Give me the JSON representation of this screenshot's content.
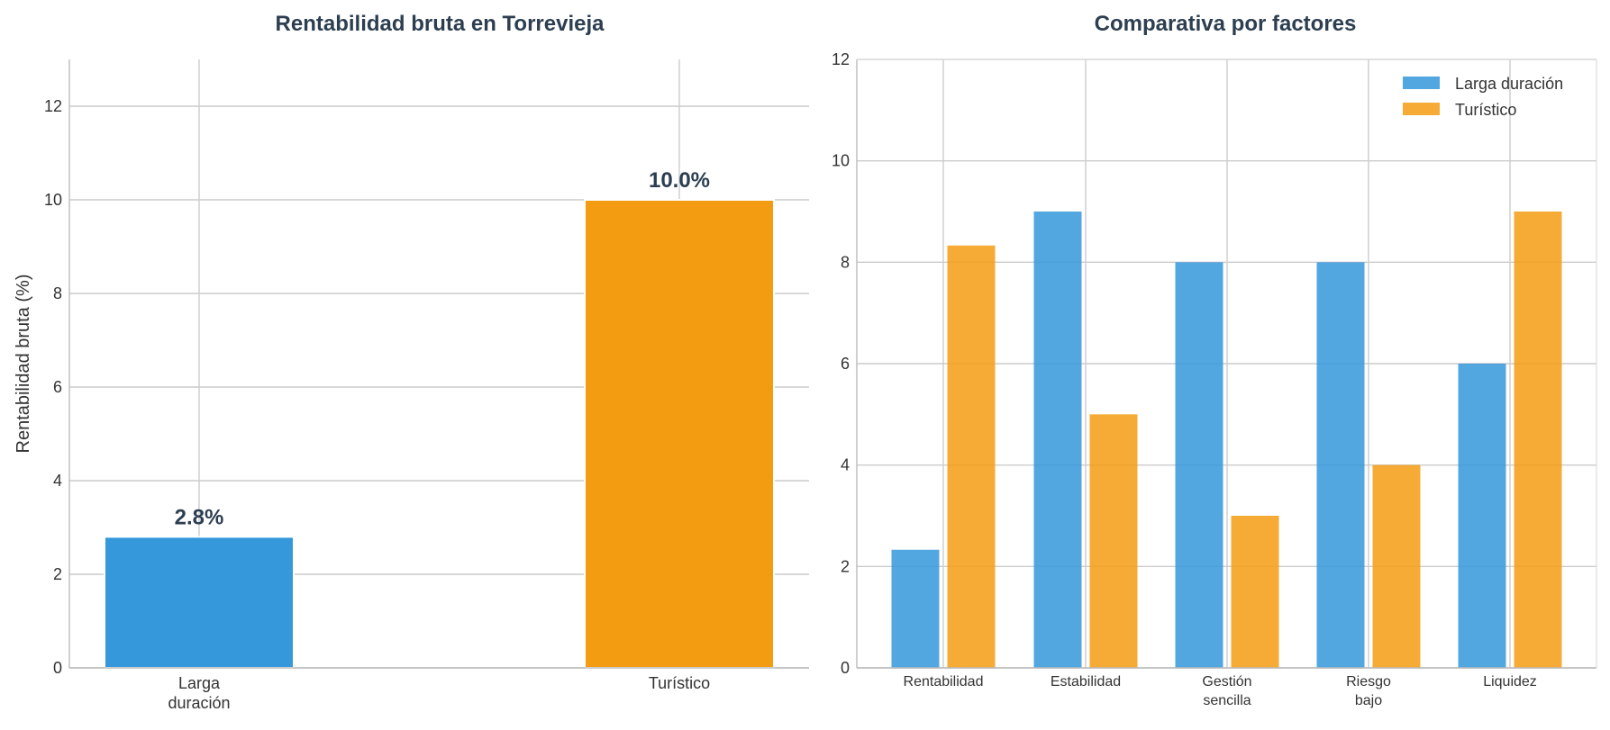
{
  "chart_data": [
    {
      "type": "bar",
      "title": "Rentabilidad bruta en Torrevieja",
      "xlabel": "",
      "ylabel": "Rentabilidad bruta (%)",
      "ylim": [
        0,
        13
      ],
      "yticks": [
        "0",
        "2",
        "4",
        "6",
        "8",
        "10",
        "12"
      ],
      "categories": [
        [
          "Larga",
          "duración"
        ],
        [
          "Turístico"
        ]
      ],
      "values": [
        2.8,
        10.0
      ],
      "data_labels": [
        "2.8%",
        "10.0%"
      ],
      "colors": [
        "#3498db",
        "#f39c12"
      ],
      "grid": true
    },
    {
      "type": "bar",
      "title": "Comparativa por factores",
      "xlabel": "",
      "ylabel": "",
      "ylim": [
        0,
        12
      ],
      "yticks": [
        "0",
        "2",
        "4",
        "6",
        "8",
        "10",
        "12"
      ],
      "categories": [
        [
          "Rentabilidad"
        ],
        [
          "Estabilidad"
        ],
        [
          "Gestión",
          "sencilla"
        ],
        [
          "Riesgo",
          "bajo"
        ],
        [
          "Liquidez"
        ]
      ],
      "series": [
        {
          "name": "Larga duración",
          "values": [
            2.33,
            9,
            8,
            8,
            6
          ],
          "color": "#3498db"
        },
        {
          "name": "Turístico",
          "values": [
            8.33,
            5,
            3,
            4,
            9
          ],
          "color": "#f39c12"
        }
      ],
      "legend": "top-right",
      "grid": true
    }
  ]
}
